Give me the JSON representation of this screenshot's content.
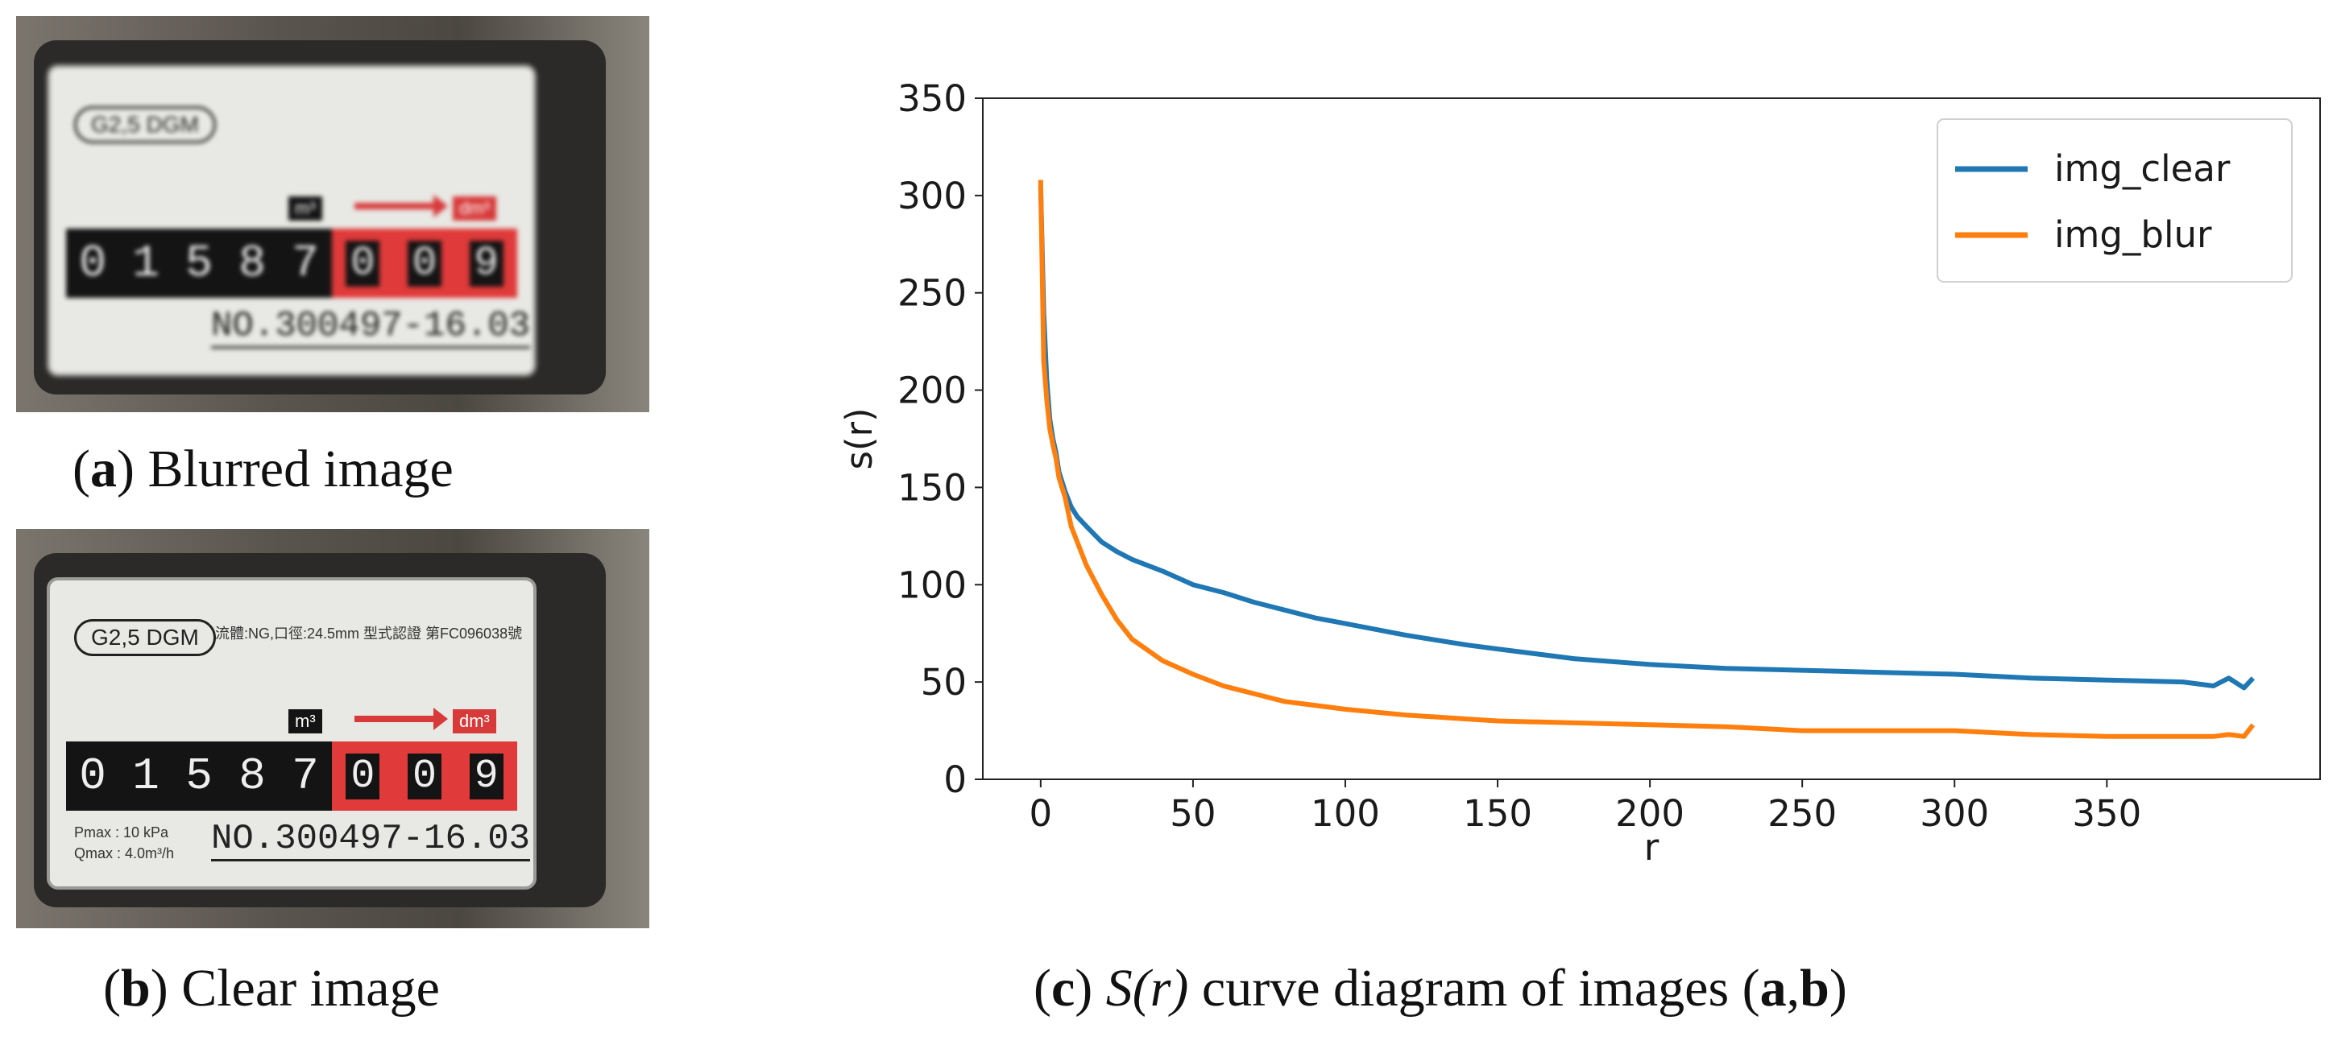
{
  "panels": {
    "a": {
      "letter": "a",
      "label": " Blurred image"
    },
    "b": {
      "letter": "b",
      "label": " Clear image"
    },
    "c": {
      "letter": "c",
      "label_prefix": " ",
      "label_italic": "S(r)",
      "label_mid": " curve diagram of images (",
      "label_bold_a": "a",
      "label_comma": ",",
      "label_bold_b": "b",
      "label_end": ")"
    }
  },
  "meter": {
    "model": "G2,5 DGM",
    "spec": "流體:NG,口徑:24.5mm 型式認證 第FC096038號",
    "digits_m3": [
      "0",
      "1",
      "5",
      "8",
      "7"
    ],
    "digits_dm3": [
      "0",
      "0",
      "9"
    ],
    "unit_m3": "m³",
    "unit_dm3": "dm³",
    "pmax": "Pmax : 10 kPa",
    "qmax": "Qmax : 4.0m³/h",
    "serial": "NO.300497-16.03"
  },
  "chart_data": {
    "type": "line",
    "title": "",
    "xlabel": "r",
    "ylabel": "s(r)",
    "xlim": [
      -19,
      420
    ],
    "ylim": [
      0,
      350
    ],
    "xticks": [
      0,
      50,
      100,
      150,
      200,
      250,
      300,
      350
    ],
    "yticks": [
      0,
      50,
      100,
      150,
      200,
      250,
      300,
      350
    ],
    "legend_position": "top-right",
    "grid": false,
    "series": [
      {
        "name": "img_clear",
        "color": "#1f77b4",
        "x": [
          0,
          1,
          2,
          3,
          4,
          5,
          6,
          8,
          10,
          12,
          15,
          20,
          25,
          30,
          40,
          50,
          60,
          70,
          80,
          90,
          100,
          120,
          140,
          150,
          175,
          200,
          225,
          250,
          275,
          300,
          325,
          350,
          375,
          385,
          390,
          395,
          398
        ],
        "y": [
          305,
          240,
          205,
          185,
          175,
          168,
          158,
          148,
          140,
          135,
          130,
          122,
          117,
          113,
          107,
          100,
          96,
          91,
          87,
          83,
          80,
          74,
          69,
          67,
          62,
          59,
          57,
          56,
          55,
          54,
          52,
          51,
          50,
          48,
          52,
          47,
          52
        ]
      },
      {
        "name": "img_blur",
        "color": "#ff7f0e",
        "x": [
          0,
          1,
          2,
          3,
          4,
          5,
          6,
          8,
          10,
          12,
          15,
          20,
          25,
          30,
          40,
          50,
          60,
          70,
          80,
          90,
          100,
          120,
          140,
          150,
          175,
          200,
          225,
          250,
          275,
          300,
          325,
          350,
          375,
          385,
          390,
          395,
          398
        ],
        "y": [
          308,
          215,
          195,
          180,
          172,
          165,
          155,
          145,
          130,
          122,
          110,
          95,
          82,
          72,
          61,
          54,
          48,
          44,
          40,
          38,
          36,
          33,
          31,
          30,
          29,
          28,
          27,
          25,
          25,
          25,
          23,
          22,
          22,
          22,
          23,
          22,
          28
        ]
      }
    ]
  }
}
